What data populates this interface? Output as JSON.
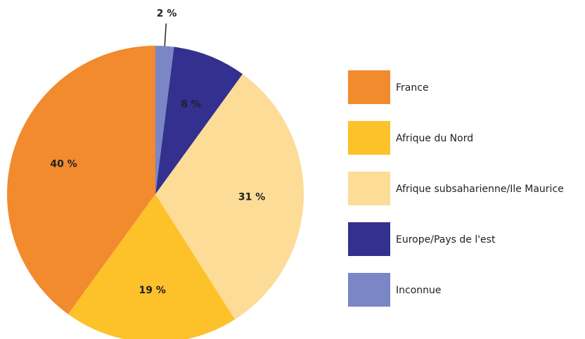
{
  "chart_data": {
    "type": "pie",
    "categories": [
      "France",
      "Afrique du Nord",
      "Afrique subsaharienne/Ile Maurice",
      "Europe/Pays de l'est",
      "Inconnue"
    ],
    "values": [
      40,
      19,
      31,
      8,
      2
    ],
    "value_labels": [
      "40 %",
      "19 %",
      "31 %",
      "8 %",
      "2 %"
    ],
    "colors": [
      "#f28a2e",
      "#fdc12a",
      "#fddc98",
      "#33308f",
      "#7b86c6"
    ],
    "legend": "right"
  }
}
